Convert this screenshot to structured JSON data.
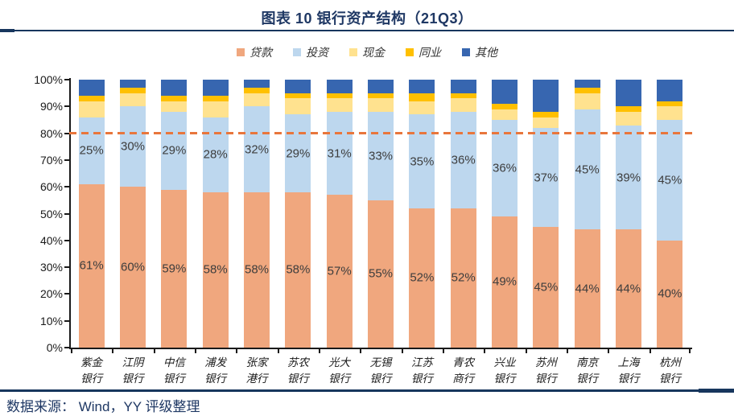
{
  "header": {
    "title": "图表 10 银行资产结构（21Q3）"
  },
  "footer": {
    "source": "数据来源： Wind，YY 评级整理"
  },
  "chart_data": {
    "type": "bar",
    "stacked": true,
    "title": "图表 10 银行资产结构（21Q3）",
    "unit": "%",
    "categories": [
      "紫金银行",
      "江阴银行",
      "中信银行",
      "浦发银行",
      "张家港行",
      "苏农银行",
      "光大银行",
      "无锡银行",
      "江苏银行",
      "青农商行",
      "兴业银行",
      "苏州银行",
      "南京银行",
      "上海银行",
      "杭州银行"
    ],
    "category_lines": [
      [
        "紫金",
        "银行"
      ],
      [
        "江阴",
        "银行"
      ],
      [
        "中信",
        "银行"
      ],
      [
        "浦发",
        "银行"
      ],
      [
        "张家",
        "港行"
      ],
      [
        "苏农",
        "银行"
      ],
      [
        "光大",
        "银行"
      ],
      [
        "无锡",
        "银行"
      ],
      [
        "江苏",
        "银行"
      ],
      [
        "青农",
        "商行"
      ],
      [
        "兴业",
        "银行"
      ],
      [
        "苏州",
        "银行"
      ],
      [
        "南京",
        "银行"
      ],
      [
        "上海",
        "银行"
      ],
      [
        "杭州",
        "银行"
      ]
    ],
    "series": [
      {
        "key": "loans",
        "name": "贷款",
        "color": "#F0A77E",
        "show_labels": true,
        "values": [
          61,
          60,
          59,
          58,
          58,
          58,
          57,
          55,
          52,
          52,
          49,
          45,
          44,
          44,
          40
        ]
      },
      {
        "key": "investment",
        "name": "投资",
        "color": "#BDD7EE",
        "show_labels": true,
        "values": [
          25,
          30,
          29,
          28,
          32,
          29,
          31,
          33,
          35,
          36,
          36,
          37,
          45,
          39,
          45
        ]
      },
      {
        "key": "cash",
        "name": "现金",
        "color": "#FFE28F",
        "show_labels": false,
        "values": [
          6,
          5,
          4,
          6,
          5,
          6,
          5,
          5,
          5,
          5,
          4,
          4,
          6,
          5,
          5
        ]
      },
      {
        "key": "interbank",
        "name": "同业",
        "color": "#FFC000",
        "show_labels": false,
        "values": [
          2,
          2,
          2,
          2,
          2,
          2,
          2,
          2,
          3,
          2,
          2,
          2,
          2,
          2,
          2
        ]
      },
      {
        "key": "other",
        "name": "其他",
        "color": "#3766B0",
        "show_labels": false,
        "values": [
          6,
          3,
          6,
          6,
          3,
          5,
          5,
          5,
          5,
          5,
          9,
          12,
          3,
          10,
          8
        ]
      }
    ],
    "ylim": [
      0,
      100
    ],
    "y_ticks": [
      "0%",
      "10%",
      "20%",
      "30%",
      "40%",
      "50%",
      "60%",
      "70%",
      "80%",
      "90%",
      "100%"
    ],
    "grid": false,
    "legend_position": "top-center",
    "reference_line": {
      "value": 80,
      "style": "dashed",
      "color": "#E8763C"
    }
  },
  "colors": {
    "title_navy": "#1F3864",
    "rule_navy": "#17365D",
    "axis_black": "#1a1a1a",
    "label_gray": "#3d3d3d"
  }
}
